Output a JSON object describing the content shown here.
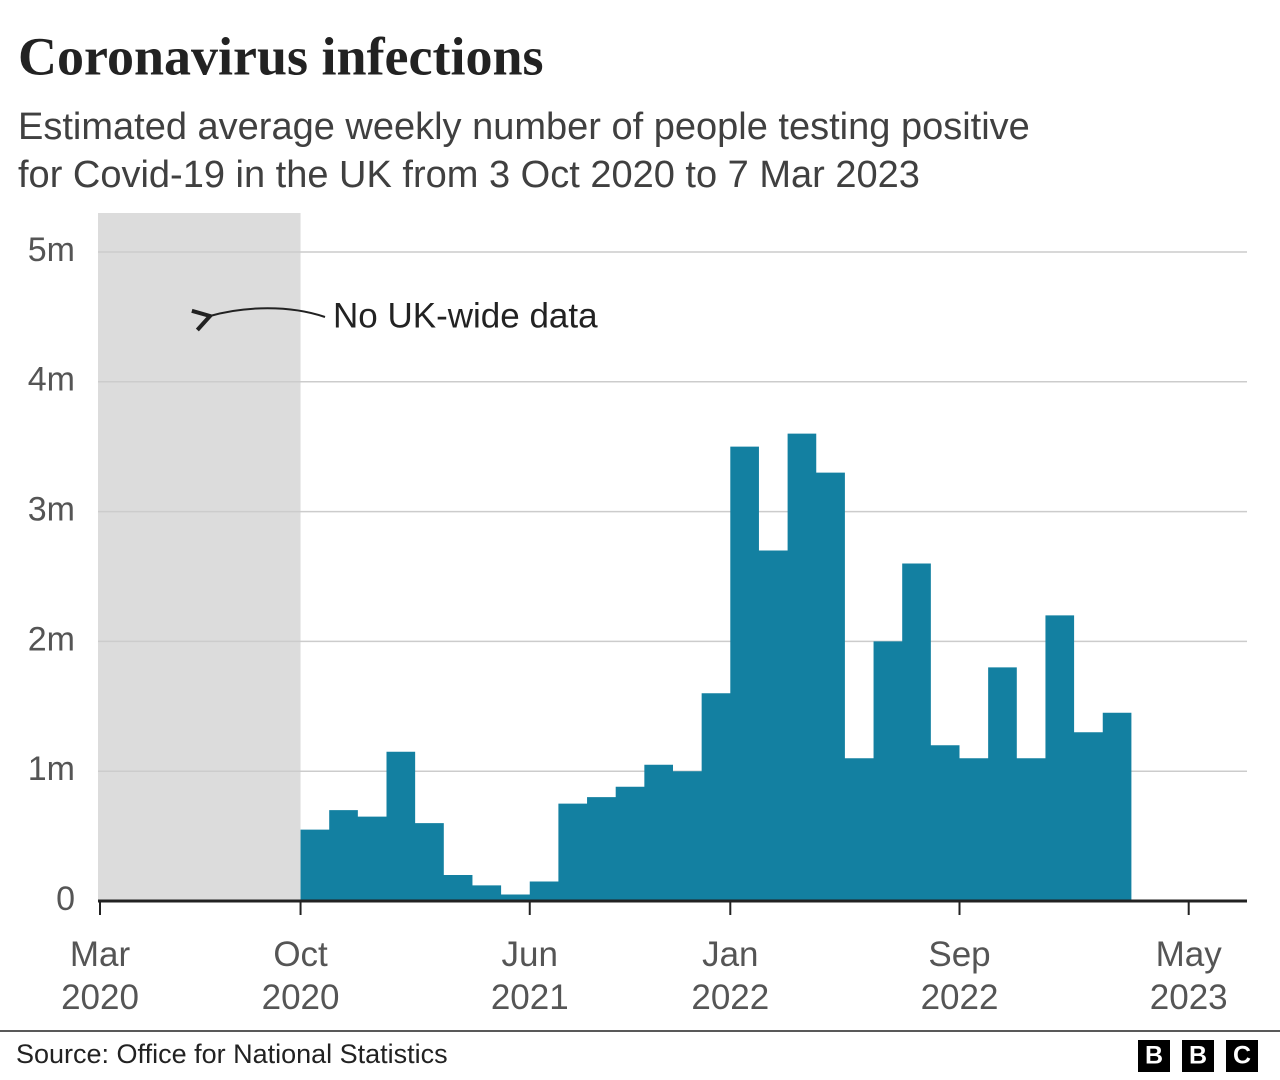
{
  "chart_data": {
    "type": "step-area",
    "title": "Coronavirus infections",
    "subtitle": [
      "Estimated average weekly number of people testing positive",
      "for Covid-19 in the UK from 3 Oct 2020 to 7 Mar 2023"
    ],
    "annotation": "No UK-wide data",
    "shaded_region": [
      "2020-03",
      "2020-10"
    ],
    "source": "Source: Office for National Statistics",
    "logo": [
      "B",
      "B",
      "C"
    ],
    "x": [
      "2020-10",
      "2020-11",
      "2020-12",
      "2021-01",
      "2021-02",
      "2021-03",
      "2021-04",
      "2021-05",
      "2021-06",
      "2021-07",
      "2021-08",
      "2021-09",
      "2021-10",
      "2021-11",
      "2021-12",
      "2022-01",
      "2022-02",
      "2022-03",
      "2022-04",
      "2022-05",
      "2022-06",
      "2022-07",
      "2022-08",
      "2022-09",
      "2022-10",
      "2022-11",
      "2022-12",
      "2023-01",
      "2023-02"
    ],
    "values": [
      550000,
      700000,
      650000,
      1150000,
      600000,
      200000,
      120000,
      50000,
      150000,
      750000,
      800000,
      880000,
      1050000,
      1000000,
      1600000,
      3500000,
      2700000,
      3600000,
      3300000,
      1100000,
      2000000,
      2600000,
      1200000,
      1100000,
      1800000,
      1100000,
      2200000,
      1300000,
      1450000
    ],
    "color": "#1380a1",
    "xlim": [
      "2020-03",
      "2023-07"
    ],
    "xticks": [
      {
        "value": "2020-03",
        "label": "Mar 2020"
      },
      {
        "value": "2020-10",
        "label": "Oct 2020"
      },
      {
        "value": "2021-06",
        "label": "Jun 2021"
      },
      {
        "value": "2022-01",
        "label": "Jan 2022"
      },
      {
        "value": "2022-09",
        "label": "Sep 2022"
      },
      {
        "value": "2023-05",
        "label": "May 2023"
      }
    ],
    "ylim": [
      0,
      5300000
    ],
    "yticks": [
      0,
      {
        "value": 1000000,
        "label": "1m"
      },
      {
        "value": 2000000,
        "label": "2m"
      },
      {
        "value": 3000000,
        "label": "3m"
      },
      {
        "value": 4000000,
        "label": "4m"
      },
      {
        "value": 5000000,
        "label": "5m"
      }
    ],
    "grid": true
  }
}
